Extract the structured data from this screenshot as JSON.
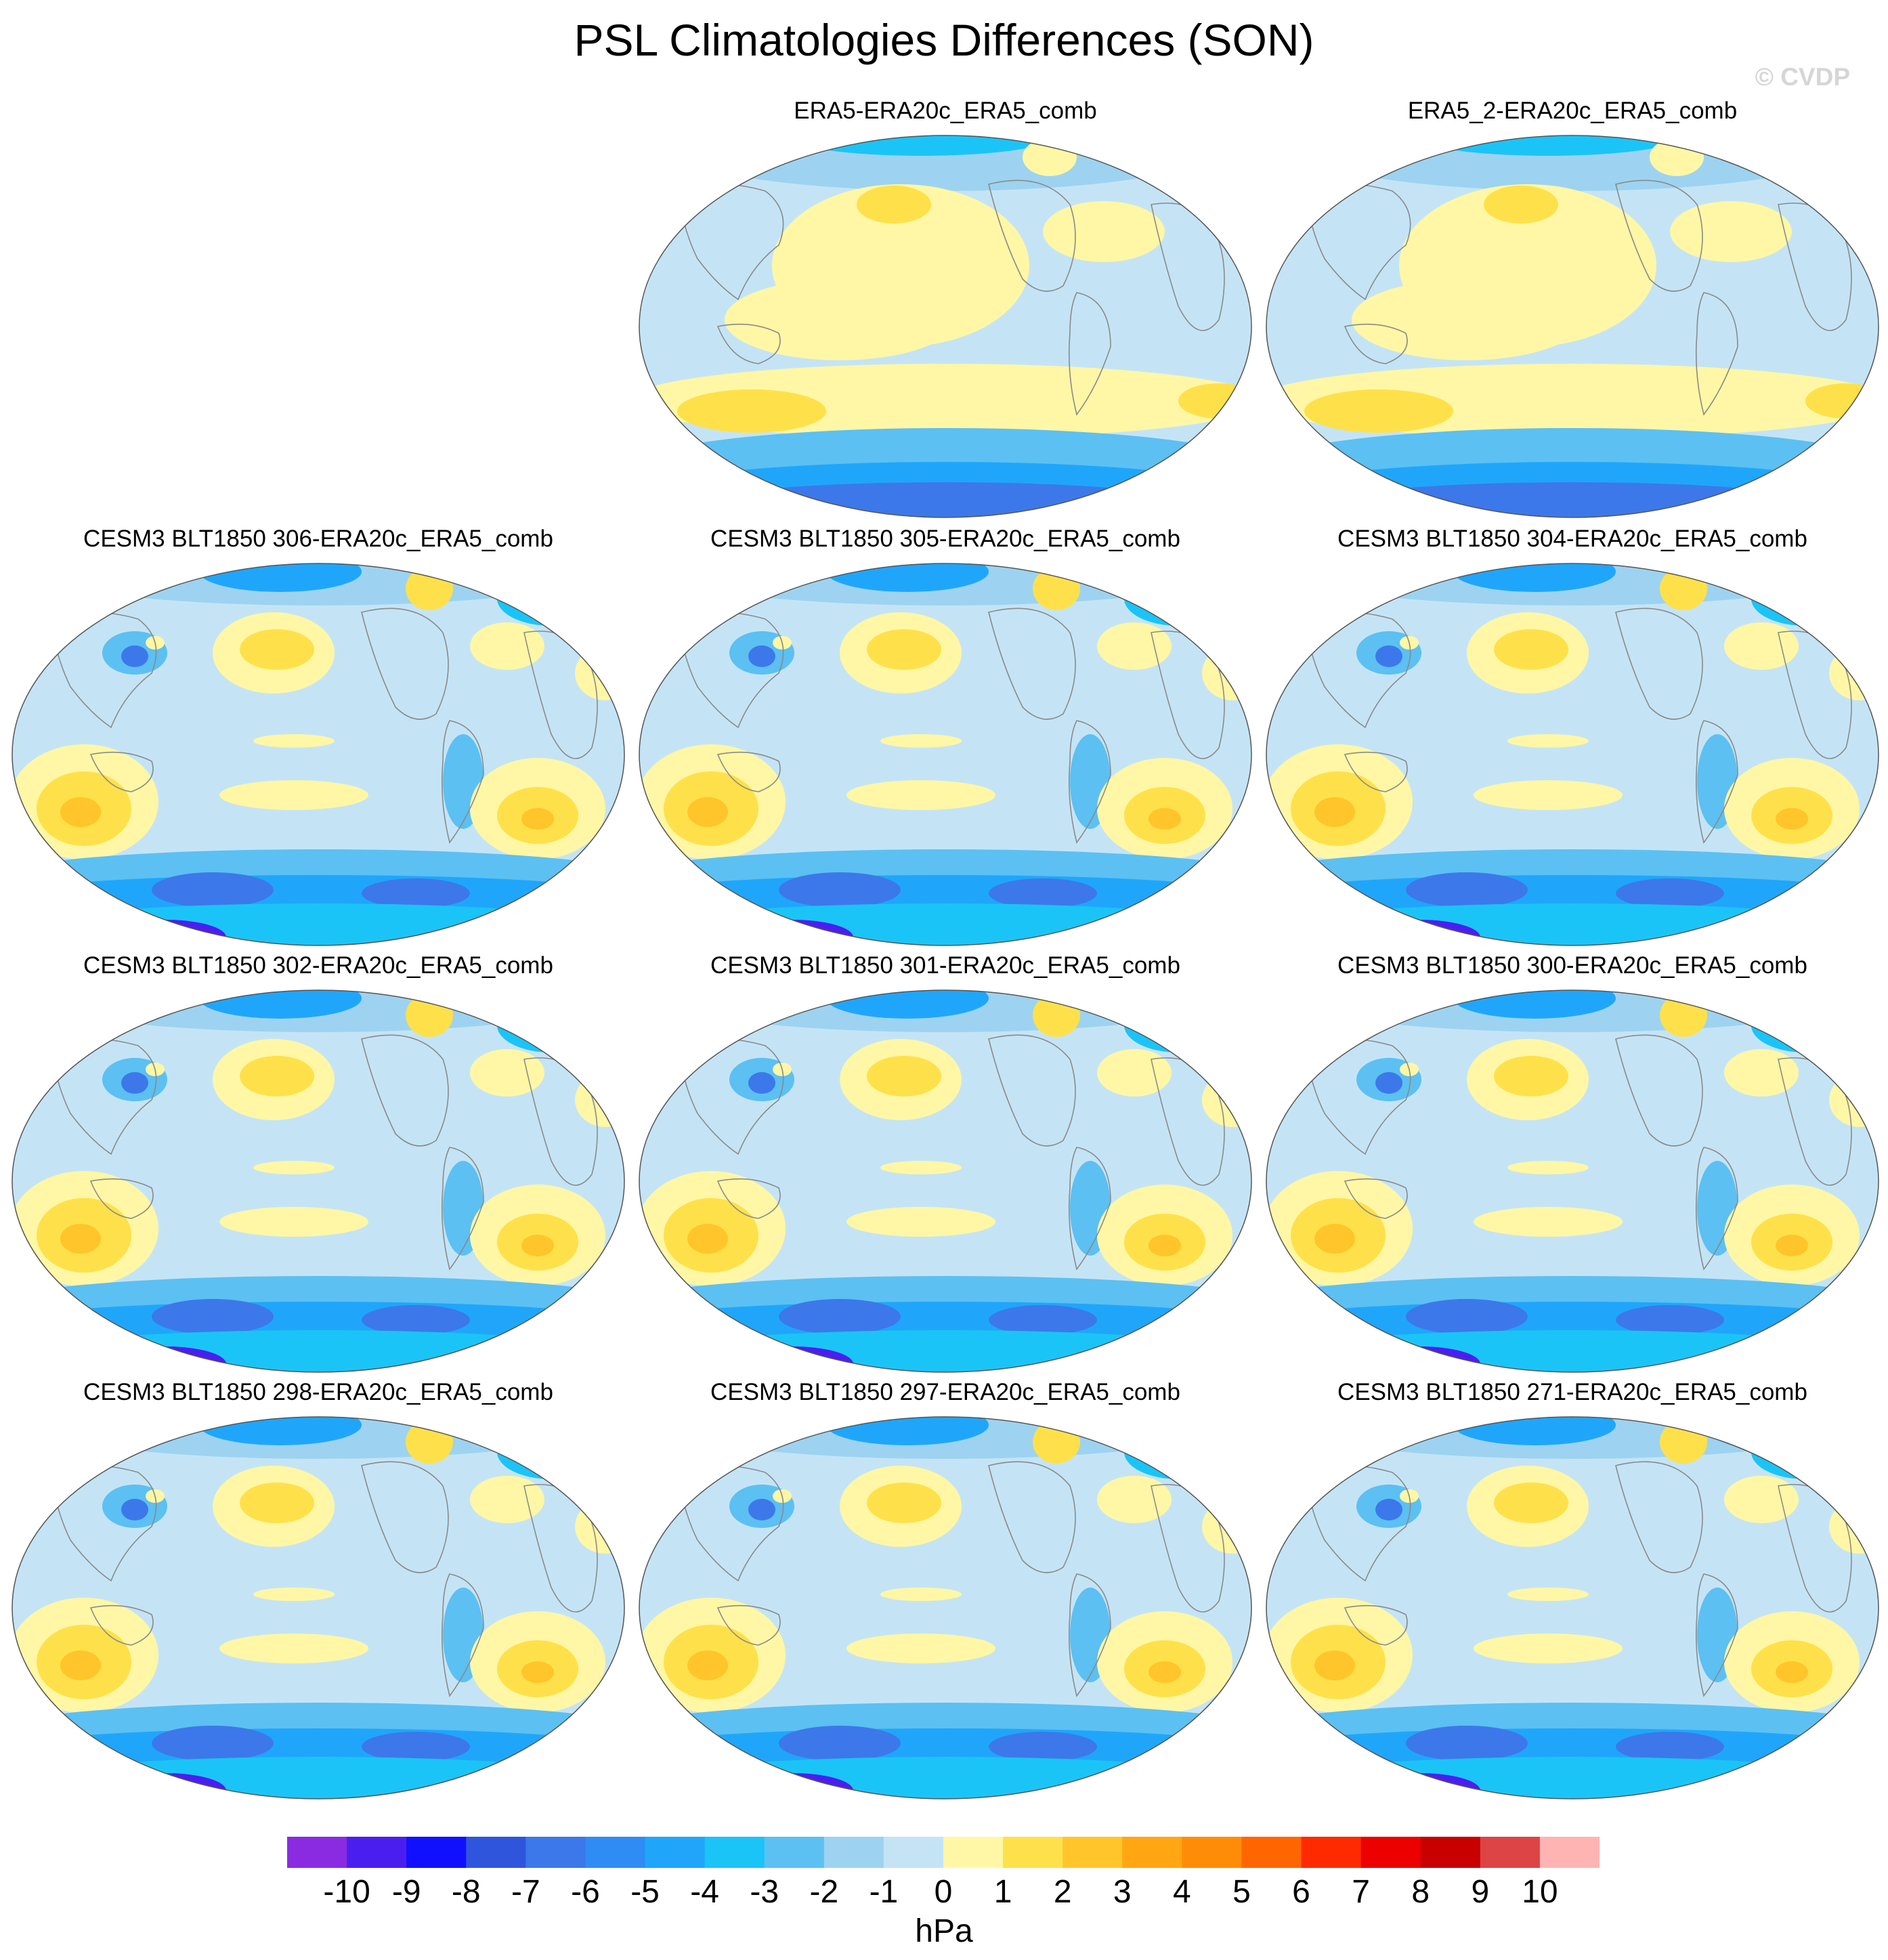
{
  "title": "PSL Climatologies Differences (SON)",
  "watermark": "© CVDP",
  "panels": [
    {
      "label": "ERA5-ERA20c_ERA5_comb",
      "row": 0,
      "col": 1,
      "variant": "obs"
    },
    {
      "label": "ERA5_2-ERA20c_ERA5_comb",
      "row": 0,
      "col": 2,
      "variant": "obs"
    },
    {
      "label": "CESM3 BLT1850 306-ERA20c_ERA5_comb",
      "row": 1,
      "col": 0,
      "variant": "model"
    },
    {
      "label": "CESM3 BLT1850 305-ERA20c_ERA5_comb",
      "row": 1,
      "col": 1,
      "variant": "model"
    },
    {
      "label": "CESM3 BLT1850 304-ERA20c_ERA5_comb",
      "row": 1,
      "col": 2,
      "variant": "model"
    },
    {
      "label": "CESM3 BLT1850 302-ERA20c_ERA5_comb",
      "row": 2,
      "col": 0,
      "variant": "model"
    },
    {
      "label": "CESM3 BLT1850 301-ERA20c_ERA5_comb",
      "row": 2,
      "col": 1,
      "variant": "model"
    },
    {
      "label": "CESM3 BLT1850 300-ERA20c_ERA5_comb",
      "row": 2,
      "col": 2,
      "variant": "model"
    },
    {
      "label": "CESM3 BLT1850 298-ERA20c_ERA5_comb",
      "row": 3,
      "col": 0,
      "variant": "model"
    },
    {
      "label": "CESM3 BLT1850 297-ERA20c_ERA5_comb",
      "row": 3,
      "col": 1,
      "variant": "model"
    },
    {
      "label": "CESM3 BLT1850 271-ERA20c_ERA5_comb",
      "row": 3,
      "col": 2,
      "variant": "model"
    }
  ],
  "colorbar": {
    "colors": [
      "#8a2be2",
      "#4b1ef0",
      "#1010ff",
      "#2f55dd",
      "#3c78ea",
      "#2f8cf5",
      "#1fa6fb",
      "#1bc4f7",
      "#5cc0f2",
      "#9dd3f0",
      "#c4e4f6",
      "#fff7a5",
      "#fee14a",
      "#ffc52a",
      "#ffa612",
      "#ff8c07",
      "#ff6600",
      "#ff2a00",
      "#ec0000",
      "#c80000",
      "#dd4444",
      "#ffb4b4"
    ],
    "labels": [
      "-10",
      "-9",
      "-8",
      "-7",
      "-6",
      "-5",
      "-4",
      "-3",
      "-2",
      "-1",
      "0",
      "1",
      "2",
      "3",
      "4",
      "5",
      "6",
      "7",
      "8",
      "9",
      "10"
    ],
    "units": "hPa"
  }
}
